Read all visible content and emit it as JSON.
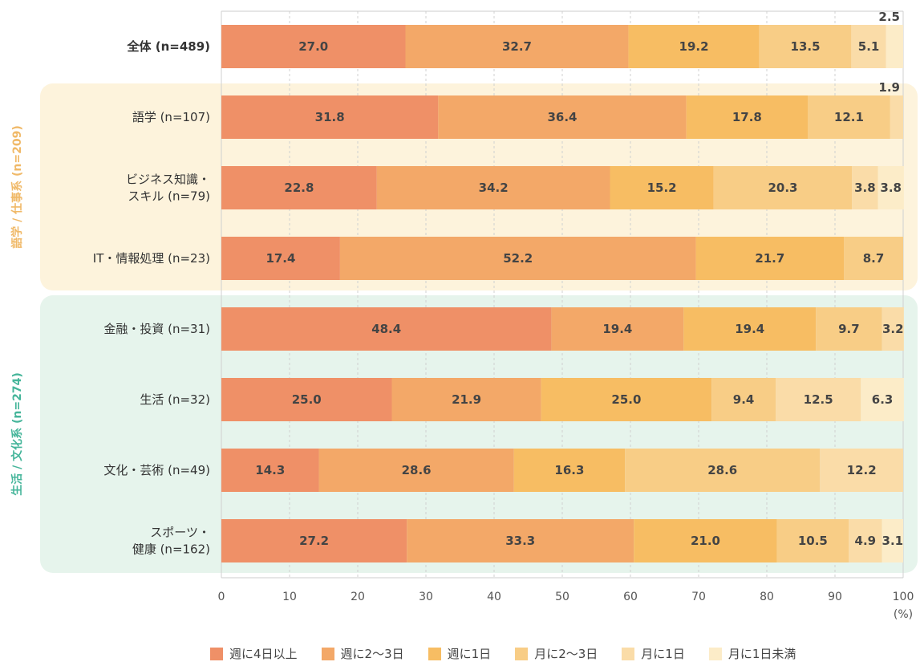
{
  "chart_data": {
    "type": "bar",
    "orientation": "horizontal",
    "stacked": true,
    "categories": [
      [
        "全体 (n=489)"
      ],
      [
        "語学 (n=107)"
      ],
      [
        "ビジネス知識・",
        "スキル (n=79)"
      ],
      [
        "IT・情報処理 (n=23)"
      ],
      [
        "金融・投資 (n=31)"
      ],
      [
        "生活 (n=32)"
      ],
      [
        "文化・芸術 (n=49)"
      ],
      [
        "スポーツ・",
        "健康 (n=162)"
      ]
    ],
    "groups": [
      {
        "label": "語学 / 仕事系 (n=209)",
        "rows": [
          1,
          3
        ],
        "color": "#fdf3dc",
        "text_color": "#f0b968"
      },
      {
        "label": "生活 / 文化系 (n=274)",
        "rows": [
          4,
          7
        ],
        "color": "#e6f4ec",
        "text_color": "#45b59a"
      }
    ],
    "series": [
      {
        "name": "週に4日以上",
        "color": "#ef9067",
        "values": [
          27.0,
          31.8,
          22.8,
          17.4,
          48.4,
          25.0,
          14.3,
          27.2
        ]
      },
      {
        "name": "週に2～3日",
        "color": "#f3a868",
        "values": [
          32.7,
          36.4,
          34.2,
          52.2,
          19.4,
          21.9,
          28.6,
          33.3
        ]
      },
      {
        "name": "週に1日",
        "color": "#f7bd63",
        "values": [
          19.2,
          17.8,
          15.2,
          21.7,
          19.4,
          25.0,
          16.3,
          21.0
        ]
      },
      {
        "name": "月に2～3日",
        "color": "#f8cd86",
        "values": [
          13.5,
          12.1,
          20.3,
          8.7,
          9.7,
          9.4,
          28.6,
          10.5
        ]
      },
      {
        "name": "月に1日",
        "color": "#fadca8",
        "values": [
          5.1,
          1.9,
          3.8,
          0,
          3.2,
          12.5,
          12.2,
          4.9
        ]
      },
      {
        "name": "月に1日未満",
        "color": "#fcecc8",
        "values": [
          2.5,
          0,
          3.8,
          0,
          0,
          6.3,
          0,
          3.1
        ]
      }
    ],
    "labels": [
      [
        "27.0",
        "32.7",
        "19.2",
        "13.5",
        "5.1",
        "2.5"
      ],
      [
        "31.8",
        "36.4",
        "17.8",
        "12.1",
        "1.9",
        ""
      ],
      [
        "22.8",
        "34.2",
        "15.2",
        "20.3",
        "3.8",
        "3.8"
      ],
      [
        "17.4",
        "52.2",
        "21.7",
        "8.7",
        "",
        ""
      ],
      [
        "48.4",
        "19.4",
        "19.4",
        "9.7",
        "3.2",
        ""
      ],
      [
        "25.0",
        "21.9",
        "25.0",
        "9.4",
        "12.5",
        "6.3"
      ],
      [
        "14.3",
        "28.6",
        "16.3",
        "28.6",
        "12.2",
        ""
      ],
      [
        "27.2",
        "33.3",
        "21.0",
        "10.5",
        "4.9",
        "3.1"
      ]
    ],
    "xlim": [
      0,
      100
    ],
    "xticks": [
      "0",
      "10",
      "20",
      "30",
      "40",
      "50",
      "60",
      "70",
      "80",
      "90",
      "100"
    ],
    "x_unit": "(%)",
    "grid": true,
    "legend_position": "bottom"
  }
}
